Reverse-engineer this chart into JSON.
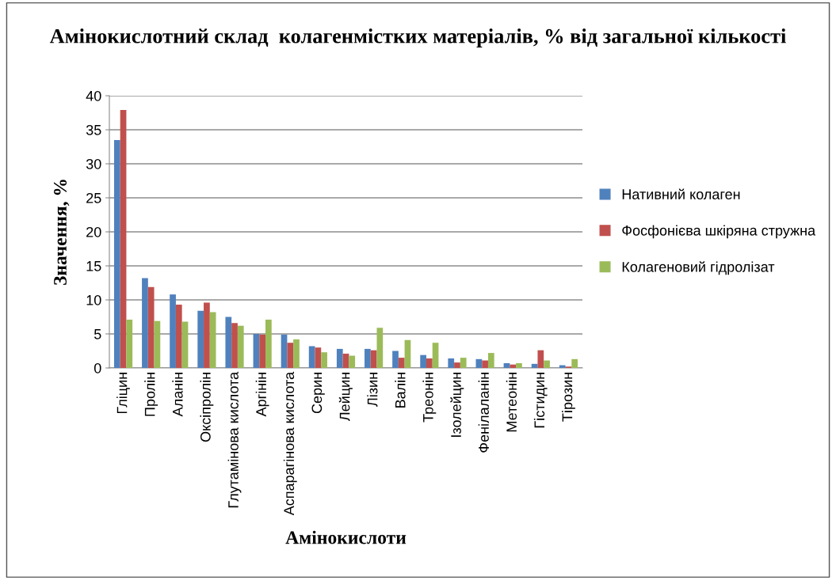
{
  "chart_data": {
    "type": "bar",
    "title": "Амінокислотний склад  колагенмістких матеріалів, % від загальної кількості",
    "xlabel": "Амінокислоти",
    "ylabel": "Значення, %",
    "categories": [
      "Гліцин",
      "Пролін",
      "Аланін",
      "Оксіпролін",
      "Глутамінова кислота",
      "Аргінін",
      "Аспарагінова кислота",
      "Серин",
      "Лейцин",
      "Лізин",
      "Валін",
      "Треонін",
      "Ізолейцин",
      "Фенілаланін",
      "Метеонін",
      "Гістидин",
      "Тірозин"
    ],
    "series": [
      {
        "name": "Нативний колаген",
        "color": "#4f81bd",
        "values": [
          33.5,
          13.2,
          10.8,
          8.4,
          7.5,
          5.0,
          4.9,
          3.2,
          2.8,
          2.8,
          2.5,
          1.9,
          1.4,
          1.3,
          0.7,
          0.6,
          0.4
        ]
      },
      {
        "name": "Фосфонієва шкіряна стружна",
        "color": "#c0504d",
        "values": [
          37.9,
          11.9,
          9.3,
          9.6,
          6.6,
          4.9,
          3.7,
          3.0,
          2.1,
          2.6,
          1.5,
          1.4,
          0.8,
          1.1,
          0.5,
          2.6,
          0.2
        ]
      },
      {
        "name": "Колагеновий гідролізат",
        "color": "#9bbb59",
        "values": [
          7.1,
          6.9,
          6.8,
          8.2,
          6.2,
          7.1,
          4.2,
          2.3,
          1.8,
          5.9,
          4.1,
          3.7,
          1.5,
          2.2,
          0.7,
          1.1,
          1.3
        ]
      }
    ],
    "ylim": [
      0,
      40
    ],
    "yticks": [
      0,
      5,
      10,
      15,
      20,
      25,
      30,
      35,
      40
    ],
    "grid": "y",
    "legend": "right"
  }
}
